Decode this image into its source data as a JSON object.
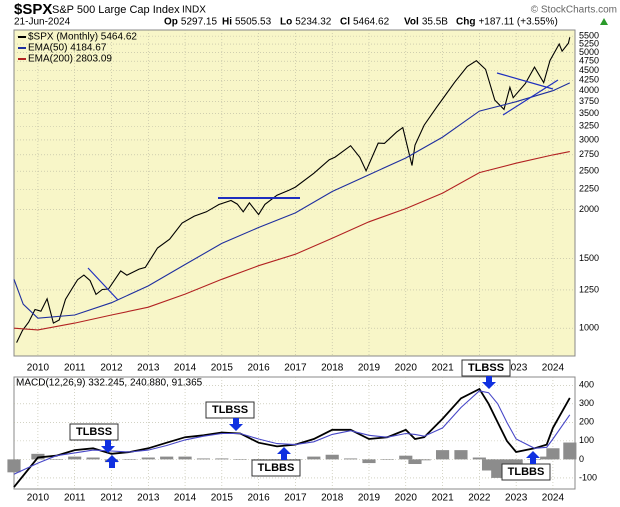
{
  "header": {
    "symbol": "$SPX",
    "name": "S&P 500 Large Cap Index",
    "exchange": "INDX",
    "source": "© StockCharts.com",
    "date": "21-Jun-2024",
    "quote": [
      {
        "label": "Op",
        "value": "5297.15"
      },
      {
        "label": "Hi",
        "value": "5505.53"
      },
      {
        "label": "Lo",
        "value": "5234.32"
      },
      {
        "label": "Cl",
        "value": "5464.62"
      },
      {
        "label": "Vol",
        "value": "35.5B"
      },
      {
        "label": "Chg",
        "value": "+187.11 (+3.55%)"
      }
    ]
  },
  "chart_data": [
    {
      "type": "line",
      "log_scale": true,
      "grid": true,
      "legend": "upper left",
      "background": "#f8f6c8",
      "xlim": [
        2009.35,
        2024.6
      ],
      "xticks": [
        2010,
        2011,
        2012,
        2013,
        2014,
        2015,
        2016,
        2017,
        2018,
        2019,
        2020,
        2021,
        2022,
        2023,
        2024
      ],
      "ylim": [
        850,
        5700
      ],
      "yticks": [
        1000,
        1250,
        1500,
        2000,
        2250,
        2500,
        2750,
        3000,
        3250,
        3500,
        3750,
        4000,
        4250,
        4500,
        4750,
        5000,
        5250,
        5500
      ],
      "series": [
        {
          "name": "$SPX (Monthly) 5464.62",
          "color": "#000000",
          "x": [
            2009.42,
            2009.58,
            2009.75,
            2009.92,
            2010.08,
            2010.25,
            2010.42,
            2010.58,
            2010.75,
            2010.92,
            2011.08,
            2011.25,
            2011.42,
            2011.58,
            2011.75,
            2011.92,
            2012.25,
            2012.42,
            2012.75,
            2012.92,
            2013.25,
            2013.58,
            2013.92,
            2014.25,
            2014.58,
            2014.92,
            2015.25,
            2015.42,
            2015.58,
            2015.75,
            2016.0,
            2016.17,
            2016.5,
            2016.83,
            2017.0,
            2017.5,
            2017.92,
            2018.08,
            2018.5,
            2018.75,
            2018.92,
            2019.25,
            2019.42,
            2019.75,
            2019.92,
            2020.17,
            2020.25,
            2020.5,
            2020.83,
            2021.0,
            2021.33,
            2021.67,
            2021.92,
            2022.17,
            2022.42,
            2022.67,
            2022.83,
            2022.92,
            2023.25,
            2023.5,
            2023.75,
            2023.92,
            2024.17,
            2024.25,
            2024.42,
            2024.46
          ],
          "values": [
            919,
            987,
            1036,
            1115,
            1104,
            1187,
            1030,
            1049,
            1183,
            1257,
            1327,
            1363,
            1320,
            1218,
            1253,
            1257,
            1397,
            1362,
            1412,
            1426,
            1597,
            1681,
            1848,
            1923,
            1972,
            2058,
            2107,
            2063,
            1972,
            2079,
            1940,
            2059,
            2173,
            2239,
            2278,
            2470,
            2673,
            2714,
            2901,
            2711,
            2506,
            2945,
            2941,
            3141,
            3225,
            2585,
            2912,
            3271,
            3622,
            3811,
            4204,
            4605,
            4766,
            4530,
            3785,
            3585,
            4080,
            3840,
            4169,
            4589,
            4194,
            4770,
            5254,
            5036,
            5278,
            5465
          ]
        },
        {
          "name": "EMA(50) 4184.67",
          "color": "#1f2f9f",
          "x": [
            2009.35,
            2009.6,
            2010.0,
            2011.0,
            2012.0,
            2013.0,
            2014.0,
            2015.0,
            2016.0,
            2017.0,
            2018.0,
            2019.0,
            2020.0,
            2021.0,
            2022.0,
            2023.0,
            2024.0,
            2024.46
          ],
          "values": [
            1330,
            1150,
            1060,
            1080,
            1160,
            1280,
            1450,
            1640,
            1800,
            1960,
            2220,
            2450,
            2700,
            3050,
            3550,
            3750,
            4000,
            4185
          ]
        },
        {
          "name": "EMA(200) 2803.09",
          "color": "#b22222",
          "x": [
            2009.35,
            2010.0,
            2011.0,
            2012.0,
            2013.0,
            2014.0,
            2015.0,
            2016.0,
            2017.0,
            2018.0,
            2019.0,
            2020.0,
            2021.0,
            2022.0,
            2023.0,
            2024.0,
            2024.46
          ],
          "values": [
            1000,
            990,
            1030,
            1080,
            1130,
            1220,
            1330,
            1440,
            1540,
            1690,
            1860,
            2010,
            2200,
            2480,
            2620,
            2750,
            2803
          ]
        }
      ]
    },
    {
      "type": "line",
      "title": "MACD(12,26,9) 332.245, 240.880, 91.365",
      "grid": true,
      "background": "#ffffff",
      "xlim": [
        2009.35,
        2024.6
      ],
      "xticks": [
        2010,
        2011,
        2012,
        2013,
        2014,
        2015,
        2016,
        2017,
        2018,
        2019,
        2020,
        2021,
        2022,
        2023,
        2024
      ],
      "ylim": [
        -160,
        445
      ],
      "yticks": [
        -100,
        0,
        100,
        200,
        300,
        400
      ],
      "annotations": [
        "TLBSS",
        "TLBSS",
        "TLBBS",
        "TLBSS",
        "TLBBS"
      ],
      "x": [
        2009.35,
        2010,
        2010.5,
        2011,
        2011.5,
        2012,
        2012.5,
        2013,
        2013.5,
        2014,
        2014.5,
        2015,
        2015.5,
        2016,
        2016.5,
        2017,
        2017.5,
        2018,
        2018.5,
        2019,
        2019.5,
        2020,
        2020.25,
        2020.5,
        2021,
        2021.5,
        2022,
        2022.25,
        2022.5,
        2022.75,
        2023,
        2023.5,
        2023.83,
        2024,
        2024.46
      ],
      "series": [
        {
          "style": "bar",
          "color": "#8c8c8c",
          "values": [
            -70,
            30,
            0,
            15,
            10,
            -15,
            0,
            10,
            15,
            15,
            5,
            5,
            0,
            -20,
            -15,
            0,
            15,
            25,
            5,
            -20,
            0,
            20,
            -25,
            -5,
            50,
            50,
            10,
            -60,
            -100,
            -100,
            -70,
            0,
            15,
            60,
            91
          ]
        },
        {
          "style": "line",
          "color": "#000000",
          "values": [
            -150,
            10,
            20,
            50,
            60,
            30,
            40,
            60,
            90,
            120,
            130,
            145,
            140,
            90,
            70,
            80,
            110,
            160,
            160,
            110,
            120,
            160,
            110,
            120,
            220,
            330,
            380,
            300,
            200,
            100,
            40,
            60,
            80,
            170,
            332
          ]
        },
        {
          "style": "line",
          "color": "#4848c8",
          "values": [
            -80,
            -20,
            20,
            35,
            50,
            45,
            40,
            50,
            75,
            105,
            125,
            140,
            140,
            110,
            85,
            80,
            95,
            135,
            155,
            130,
            120,
            140,
            135,
            125,
            170,
            280,
            370,
            360,
            300,
            200,
            110,
            60,
            65,
            110,
            241
          ]
        }
      ]
    }
  ]
}
